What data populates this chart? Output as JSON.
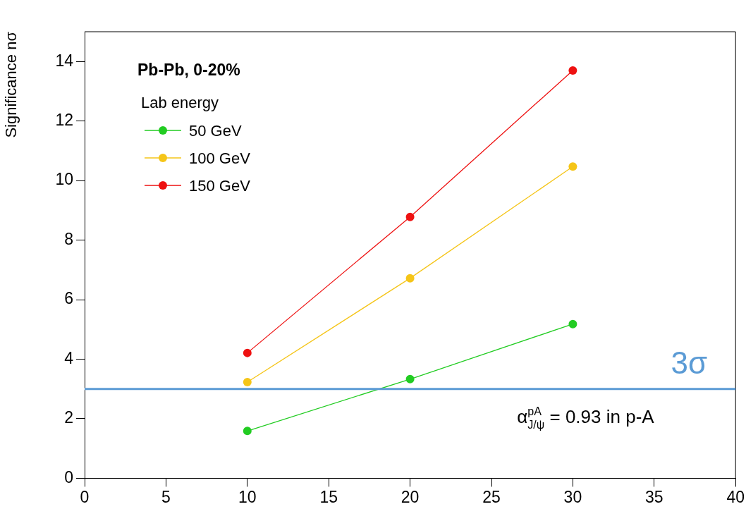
{
  "chart_data": {
    "type": "line",
    "title": "Pb-Pb, 0-20%",
    "ylabel": "Significance nσ",
    "legend_title": "Lab energy",
    "x": [
      10,
      20,
      30
    ],
    "series": [
      {
        "name": "50 GeV",
        "color": "#22cc22",
        "values": [
          1.59,
          3.33,
          5.18
        ]
      },
      {
        "name": "100 GeV",
        "color": "#f5c518",
        "values": [
          3.23,
          6.72,
          10.47
        ]
      },
      {
        "name": "150 GeV",
        "color": "#ee1111",
        "values": [
          4.21,
          8.78,
          13.7
        ]
      }
    ],
    "xlim": [
      0,
      40
    ],
    "xticks": [
      0,
      5,
      10,
      15,
      20,
      25,
      30,
      35,
      40
    ],
    "ylim": [
      0,
      15
    ],
    "yticks": [
      0,
      2,
      4,
      6,
      8,
      10,
      12,
      14
    ],
    "ref_lines": [
      {
        "axis": "y",
        "value": 3,
        "label": "3σ",
        "color": "#5b9bd5"
      }
    ],
    "annotations": [
      "α$_{J/ψ}$$^{pA}$ = 0.93 in p-A"
    ],
    "legend": "top left",
    "grid": false,
    "marker": "circle",
    "line_style": "solid"
  }
}
